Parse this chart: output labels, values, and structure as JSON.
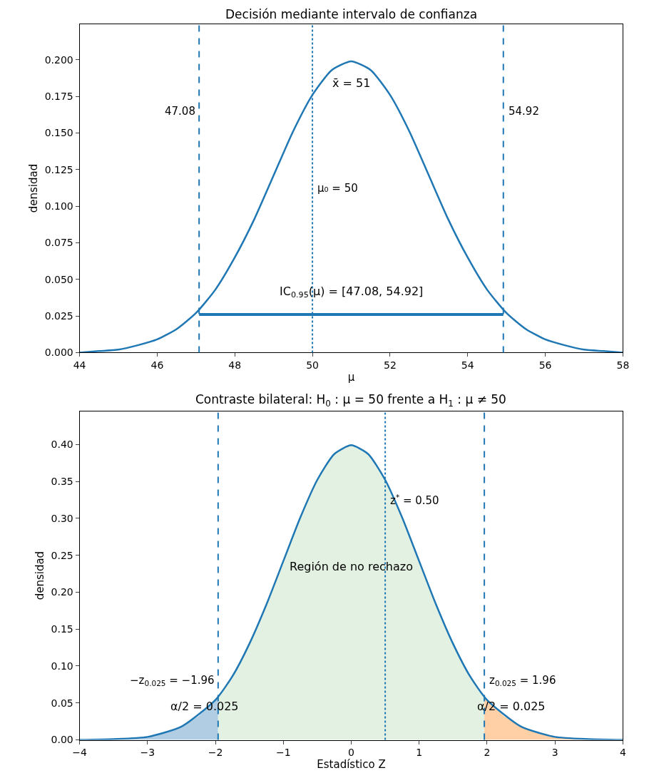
{
  "chart_data": [
    {
      "type": "line",
      "title": "Decisión mediante intervalo de confianza",
      "xlabel": "μ",
      "ylabel": "densidad",
      "series": [
        {
          "color": "#1f77b4",
          "x": [
            44,
            44.5,
            45,
            45.5,
            46,
            46.5,
            47,
            47.5,
            48,
            48.5,
            49,
            49.5,
            50,
            50.5,
            51,
            51.5,
            52,
            52.5,
            53,
            53.5,
            54,
            54.5,
            55,
            55.5,
            56,
            56.5,
            57,
            57.5,
            58
          ],
          "values": [
            0.0,
            0.001,
            0.002,
            0.005,
            0.009,
            0.016,
            0.027,
            0.043,
            0.065,
            0.091,
            0.121,
            0.151,
            0.176,
            0.193,
            0.199,
            0.193,
            0.176,
            0.151,
            0.121,
            0.091,
            0.065,
            0.043,
            0.027,
            0.016,
            0.009,
            0.005,
            0.002,
            0.001,
            0.0
          ]
        },
        {
          "color": "#1f77b4",
          "x": [
            47.08,
            54.92
          ],
          "values": [
            0.026,
            0.026
          ]
        }
      ],
      "ref_lines": [
        {
          "axis": "x",
          "value": 47.08,
          "label": "47.08",
          "line_style": "dashed",
          "color": "#1f77b4"
        },
        {
          "axis": "x",
          "value": 54.92,
          "label": "54.92",
          "line_style": "dashed",
          "color": "#1f77b4"
        },
        {
          "axis": "x",
          "value": 50,
          "label": "μ₀ = 50",
          "line_style": "dotted",
          "color": "#1f77b4"
        }
      ],
      "annotations": [
        "x̄ = 51",
        "IC$_{0.95}$(μ) = [47.08, 54.92]"
      ],
      "xlim": [
        44,
        58
      ],
      "xticks": [
        44,
        46,
        48,
        50,
        52,
        54,
        56,
        58
      ],
      "ylim": [
        0,
        0.2245
      ],
      "yticks": [
        {
          "value": 0,
          "label": "0.000"
        },
        {
          "value": 0.025,
          "label": "0.025"
        },
        {
          "value": 0.05,
          "label": "0.050"
        },
        {
          "value": 0.075,
          "label": "0.075"
        },
        {
          "value": 0.1,
          "label": "0.100"
        },
        {
          "value": 0.125,
          "label": "0.125"
        },
        {
          "value": 0.15,
          "label": "0.150"
        },
        {
          "value": 0.175,
          "label": "0.175"
        },
        {
          "value": 0.2,
          "label": "0.200"
        }
      ],
      "line_style": "solid",
      "marker": "none"
    },
    {
      "type": "line",
      "title": "Contraste bilateral: H$_{0}$ : μ = 50 frente a H$_{1}$ : μ ≠ 50",
      "xlabel": "Estadístico Z",
      "ylabel": "densidad",
      "series": [
        {
          "type": "area",
          "color": "#b1cde3",
          "x": [
            -4,
            -3.75,
            -3.5,
            -3.25,
            -3,
            -2.75,
            -2.5,
            -2.25,
            -1.96
          ],
          "values": [
            0.0,
            0.0,
            0.001,
            0.002,
            0.004,
            0.009,
            0.018,
            0.032,
            0.058
          ]
        },
        {
          "type": "area",
          "color": "#e2f1e2",
          "x": [
            -1.96,
            -1.75,
            -1.5,
            -1.25,
            -1,
            -0.75,
            -0.5,
            -0.25,
            0,
            0.25,
            0.5,
            0.75,
            1,
            1.25,
            1.5,
            1.75,
            1.96
          ],
          "values": [
            0.058,
            0.086,
            0.13,
            0.183,
            0.242,
            0.301,
            0.352,
            0.387,
            0.399,
            0.387,
            0.352,
            0.301,
            0.242,
            0.183,
            0.13,
            0.086,
            0.058
          ]
        },
        {
          "type": "area",
          "color": "#ffd0a6",
          "x": [
            1.96,
            2.25,
            2.5,
            2.75,
            3,
            3.25,
            3.5,
            3.75,
            4
          ],
          "values": [
            0.058,
            0.032,
            0.018,
            0.009,
            0.004,
            0.002,
            0.001,
            0.0,
            0.0
          ]
        },
        {
          "color": "#1f77b4",
          "x": [
            -4,
            -3.5,
            -3,
            -2.5,
            -2,
            -1.75,
            -1.5,
            -1.25,
            -1,
            -0.75,
            -0.5,
            -0.25,
            0,
            0.25,
            0.5,
            0.75,
            1,
            1.25,
            1.5,
            1.75,
            2,
            2.5,
            3,
            3.5,
            4
          ],
          "values": [
            0.0,
            0.001,
            0.004,
            0.018,
            0.054,
            0.086,
            0.13,
            0.183,
            0.242,
            0.301,
            0.352,
            0.387,
            0.399,
            0.387,
            0.352,
            0.301,
            0.242,
            0.183,
            0.13,
            0.086,
            0.054,
            0.018,
            0.004,
            0.001,
            0.0
          ]
        }
      ],
      "ref_lines": [
        {
          "axis": "x",
          "value": -1.96,
          "label": "−z$_{0.025}$ = −1.96",
          "line_style": "dashed",
          "color": "#1f77b4"
        },
        {
          "axis": "x",
          "value": 1.96,
          "label": "z$_{0.025}$ = 1.96",
          "line_style": "dashed",
          "color": "#1f77b4"
        },
        {
          "axis": "x",
          "value": 0.5,
          "label": "z$^{*}$ = 0.50",
          "line_style": "dotted",
          "color": "#1f77b4"
        }
      ],
      "annotations": [
        "Región de no rechazo",
        "α/2 = 0.025",
        "α/2 = 0.025"
      ],
      "xlim": [
        -4,
        4
      ],
      "xticks": [
        {
          "value": -4,
          "label": "−4"
        },
        {
          "value": -3,
          "label": "−3"
        },
        {
          "value": -2,
          "label": "−2"
        },
        {
          "value": -1,
          "label": "−1"
        },
        0,
        1,
        2,
        3,
        4
      ],
      "ylim": [
        0,
        0.445
      ],
      "yticks": [
        {
          "value": 0,
          "label": "0.00"
        },
        0.05,
        {
          "value": 0.1,
          "label": "0.10"
        },
        0.15,
        {
          "value": 0.2,
          "label": "0.20"
        },
        0.25,
        {
          "value": 0.3,
          "label": "0.30"
        },
        0.35,
        {
          "value": 0.4,
          "label": "0.40"
        }
      ],
      "line_style": "solid",
      "marker": "none"
    }
  ]
}
